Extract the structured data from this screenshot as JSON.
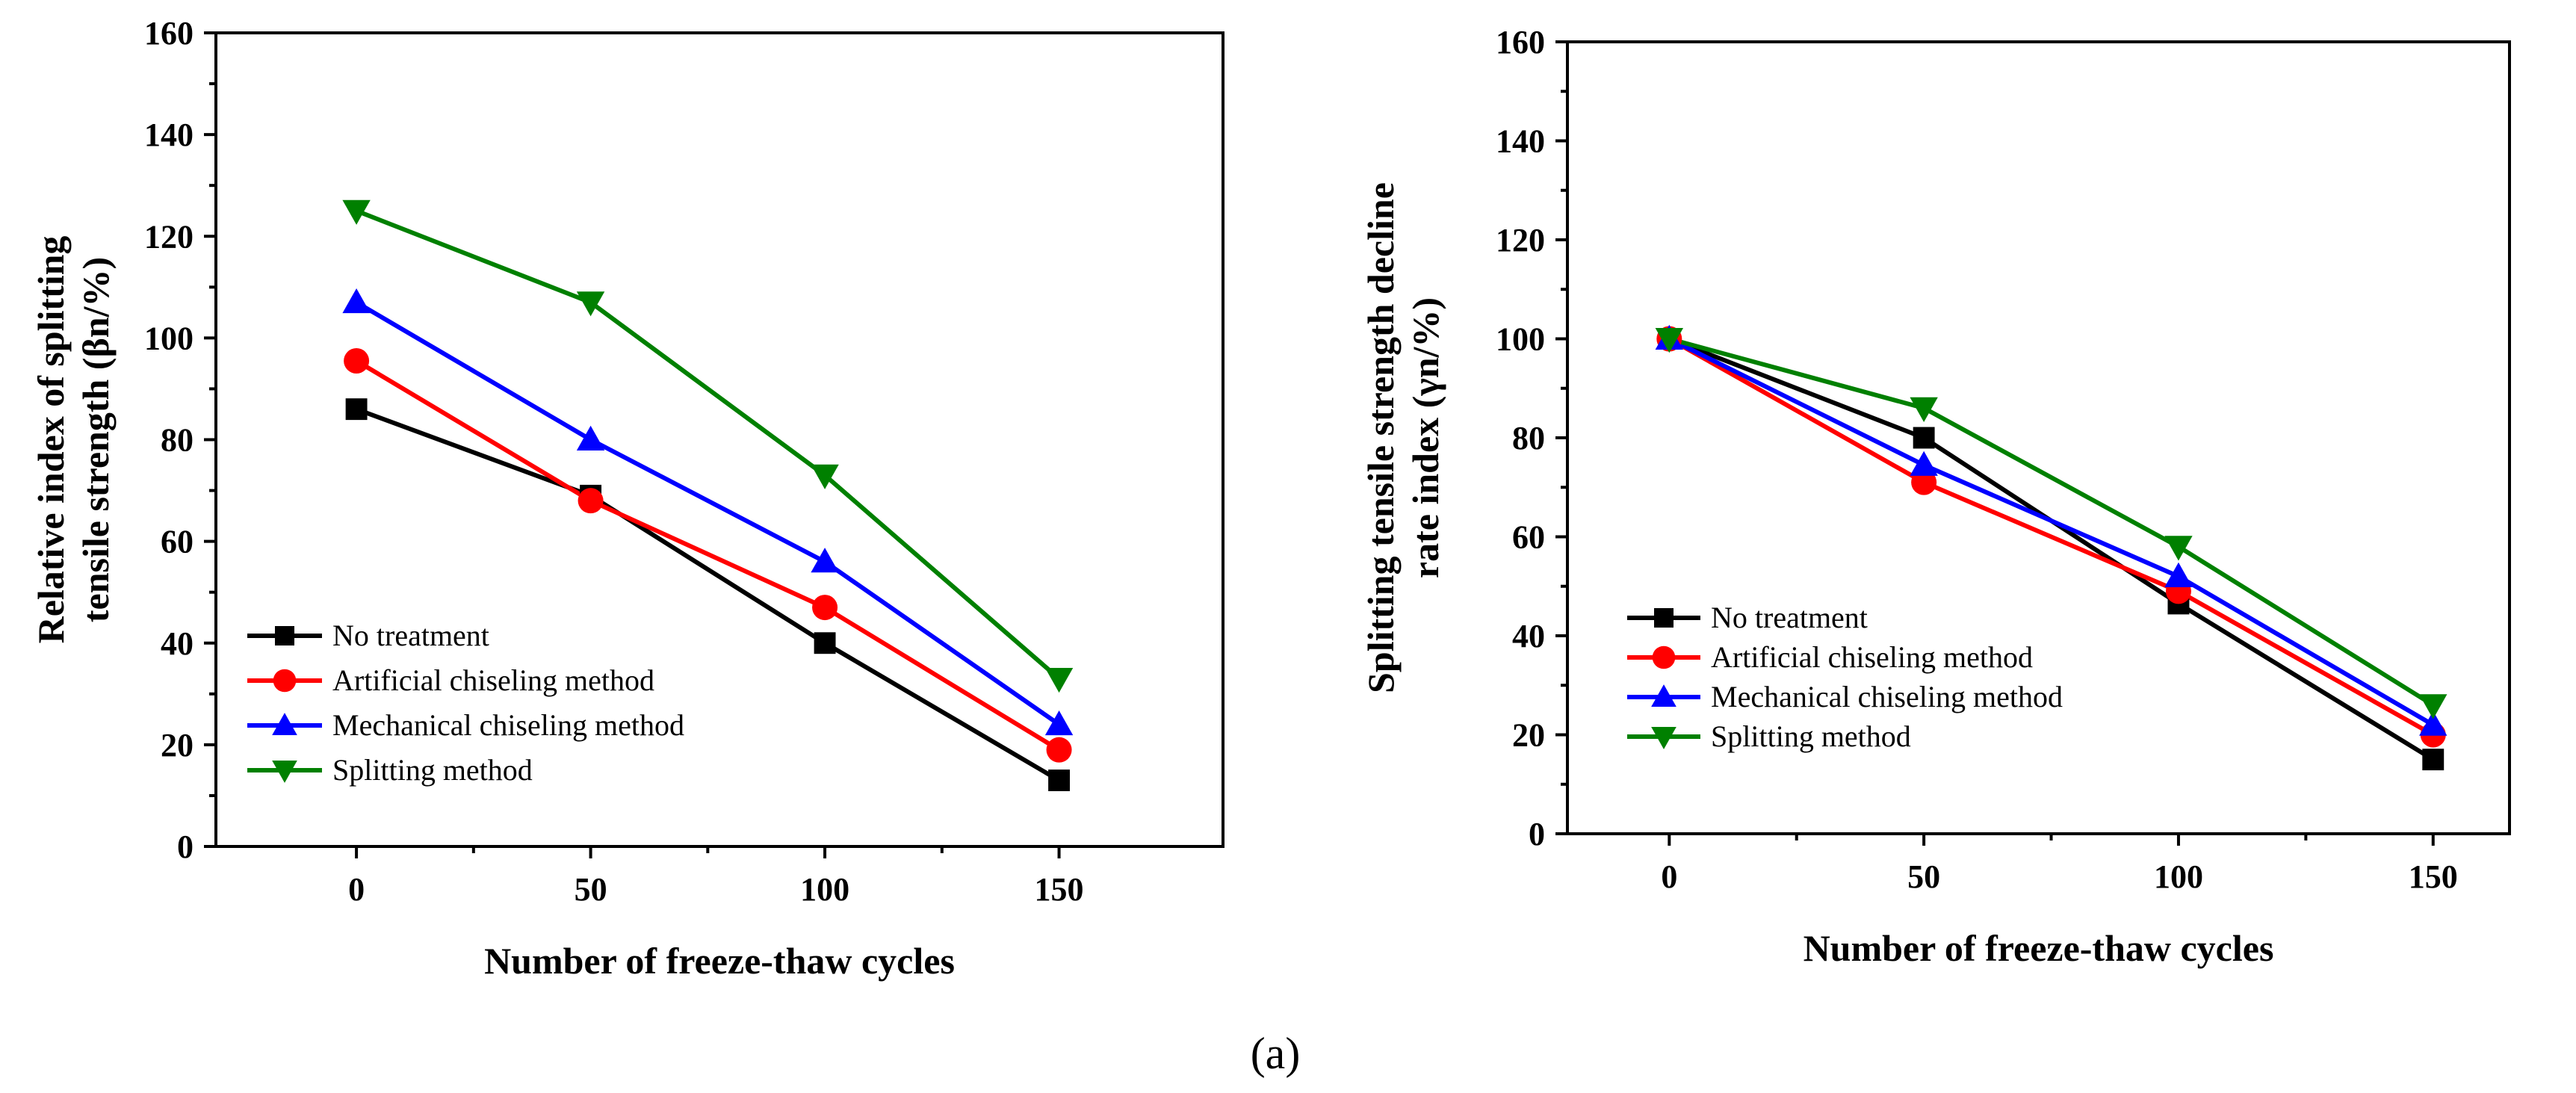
{
  "figure": {
    "caption": "(a)"
  },
  "chart_data": [
    {
      "type": "line",
      "x": [
        0,
        50,
        100,
        150
      ],
      "xlabel": "Number of freeze-thaw cycles",
      "ylabel": "Relative index of splitting tensile strength (βn/%)",
      "ylabel_lines": [
        "Relative index of splitting",
        "tensile strength (βn/%)"
      ],
      "xlim": [
        -30,
        185
      ],
      "ylim": [
        0,
        160
      ],
      "xticks": [
        0,
        50,
        100,
        150
      ],
      "yticks": [
        0,
        20,
        40,
        60,
        80,
        100,
        120,
        140,
        160
      ],
      "legend_position": "lower-left",
      "grid": false,
      "series": [
        {
          "name": "No treatment",
          "values": [
            86,
            69,
            40,
            13
          ],
          "color": "#000000",
          "marker": "square"
        },
        {
          "name": "Artificial chiseling method",
          "values": [
            95.5,
            68,
            47,
            19
          ],
          "color": "#ff0000",
          "marker": "circle"
        },
        {
          "name": "Mechanical chiseling method",
          "values": [
            107,
            80,
            56,
            24
          ],
          "color": "#0000ff",
          "marker": "triangle-up"
        },
        {
          "name": "Splitting method",
          "values": [
            125,
            107,
            73,
            33
          ],
          "color": "#008000",
          "marker": "triangle-down"
        }
      ]
    },
    {
      "type": "line",
      "x": [
        0,
        50,
        100,
        150
      ],
      "xlabel": "Number of freeze-thaw cycles",
      "ylabel": "Splitting tensile strength decline rate index (γn/%)",
      "ylabel_lines": [
        "Splitting tensile strength decline",
        "rate index (γn/%)"
      ],
      "xlim": [
        -20,
        165
      ],
      "ylim": [
        0,
        160
      ],
      "xticks": [
        0,
        50,
        100,
        150
      ],
      "yticks": [
        0,
        20,
        40,
        60,
        80,
        100,
        120,
        140,
        160
      ],
      "legend_position": "lower-left",
      "grid": false,
      "series": [
        {
          "name": "No treatment",
          "values": [
            100,
            80,
            46.5,
            15
          ],
          "color": "#000000",
          "marker": "square"
        },
        {
          "name": "Artificial chiseling method",
          "values": [
            100,
            71,
            49,
            20
          ],
          "color": "#ff0000",
          "marker": "circle"
        },
        {
          "name": "Mechanical chiseling method",
          "values": [
            100,
            74.5,
            52,
            22
          ],
          "color": "#0000ff",
          "marker": "triangle-up"
        },
        {
          "name": "Splitting method",
          "values": [
            100,
            86,
            58,
            26
          ],
          "color": "#008000",
          "marker": "triangle-down"
        }
      ]
    }
  ]
}
